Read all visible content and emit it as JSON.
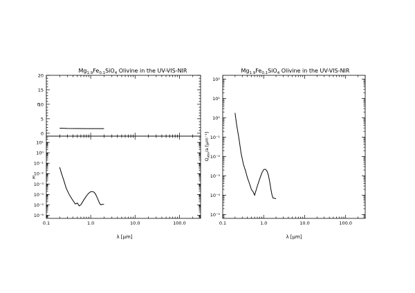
{
  "chart_data": [
    {
      "type": "line",
      "title_main": "Mg",
      "title_sub1": "1.9",
      "title_mid": "Fe",
      "title_sub2": "0.1",
      "title_end": "SiO",
      "title_sub3": "4",
      "title_tail": " Olivine in the UV-VIS-NIR",
      "panels": [
        {
          "id": "n",
          "ylabel": "n",
          "yscale": "linear",
          "ylim": [
            -1,
            20
          ],
          "yticks": [
            0,
            5,
            10,
            15,
            20
          ],
          "yticklabels": [
            "0",
            "5",
            "10",
            "15",
            "20"
          ],
          "series": [
            {
              "x": [
                0.2,
                0.3,
                0.5,
                0.8,
                1.2,
                2.0
              ],
              "y": [
                1.75,
                1.65,
                1.62,
                1.6,
                1.6,
                1.6
              ]
            }
          ]
        },
        {
          "id": "k",
          "ylabel": "k",
          "xlabel": "λ [μm]",
          "yscale": "log",
          "ylim_exp": [
            -6.3,
            1.6
          ],
          "yticks_exp": [
            1,
            0,
            -1,
            -2,
            -3,
            -4,
            -5,
            -6
          ],
          "yticklabels": [
            "10¹",
            "10⁰",
            "10⁻¹",
            "10⁻²",
            "10⁻³",
            "10⁻⁴",
            "10⁻⁵",
            "10⁻⁶"
          ],
          "series": [
            {
              "x": [
                0.2,
                0.22,
                0.25,
                0.28,
                0.32,
                0.36,
                0.4,
                0.45,
                0.5,
                0.55,
                0.6,
                0.7,
                0.8,
                0.9,
                1.0,
                1.1,
                1.2,
                1.3,
                1.4,
                1.5,
                1.6,
                1.7,
                1.8,
                2.0
              ],
              "y": [
                0.04,
                0.01,
                0.002,
                0.0004,
                0.00012,
                5e-05,
                2.5e-05,
                1.2e-05,
                1.5e-05,
                8e-06,
                1e-05,
                3e-05,
                7e-05,
                0.00013,
                0.00018,
                0.00019,
                0.00016,
                0.0001,
                5e-05,
                2.5e-05,
                1.3e-05,
                1e-05,
                1.1e-05,
                1.1e-05
              ]
            }
          ]
        }
      ],
      "xscale": "log",
      "xlim": [
        0.1,
        300
      ],
      "xticklabels": [
        "0.1",
        "1.0",
        "10.0",
        "100.0"
      ]
    },
    {
      "type": "line",
      "title_main": "Mg",
      "title_sub1": "1.9",
      "title_mid": "Fe",
      "title_sub2": "0.1",
      "title_end": "SiO",
      "title_sub3": "4",
      "title_tail": " Olivine in the UV-VIS-NIR",
      "ylabel_main": "Q",
      "ylabel_sub": "abs",
      "ylabel_tail": "/a [μm⁻¹]",
      "xlabel": "λ [μm]",
      "yscale": "log",
      "ylim_exp": [
        -5.2,
        2.2
      ],
      "yticks_exp": [
        2,
        1,
        0,
        -1,
        -2,
        -3,
        -4,
        -5
      ],
      "yticklabels": [
        "10²",
        "10¹",
        "10⁰",
        "10⁻¹",
        "10⁻²",
        "10⁻³",
        "10⁻⁴",
        "10⁻⁵"
      ],
      "xscale": "log",
      "xlim": [
        0.1,
        300
      ],
      "xticklabels": [
        "0.1",
        "1.0",
        "10.0",
        "100.0"
      ],
      "series": [
        {
          "x": [
            0.2,
            0.22,
            0.25,
            0.28,
            0.32,
            0.36,
            0.4,
            0.45,
            0.5,
            0.55,
            0.6,
            0.7,
            0.8,
            0.9,
            1.0,
            1.1,
            1.2,
            1.3,
            1.4,
            1.5,
            1.6,
            1.7,
            1.8,
            2.0
          ],
          "y": [
            1.8,
            0.4,
            0.08,
            0.015,
            0.004,
            0.0018,
            0.0008,
            0.0004,
            0.0002,
            0.00015,
            0.0001,
            0.0003,
            0.0007,
            0.0014,
            0.0021,
            0.0022,
            0.0018,
            0.0011,
            0.0005,
            0.0002,
            0.0001,
            7e-05,
            7e-05,
            6.5e-05
          ]
        }
      ]
    }
  ]
}
